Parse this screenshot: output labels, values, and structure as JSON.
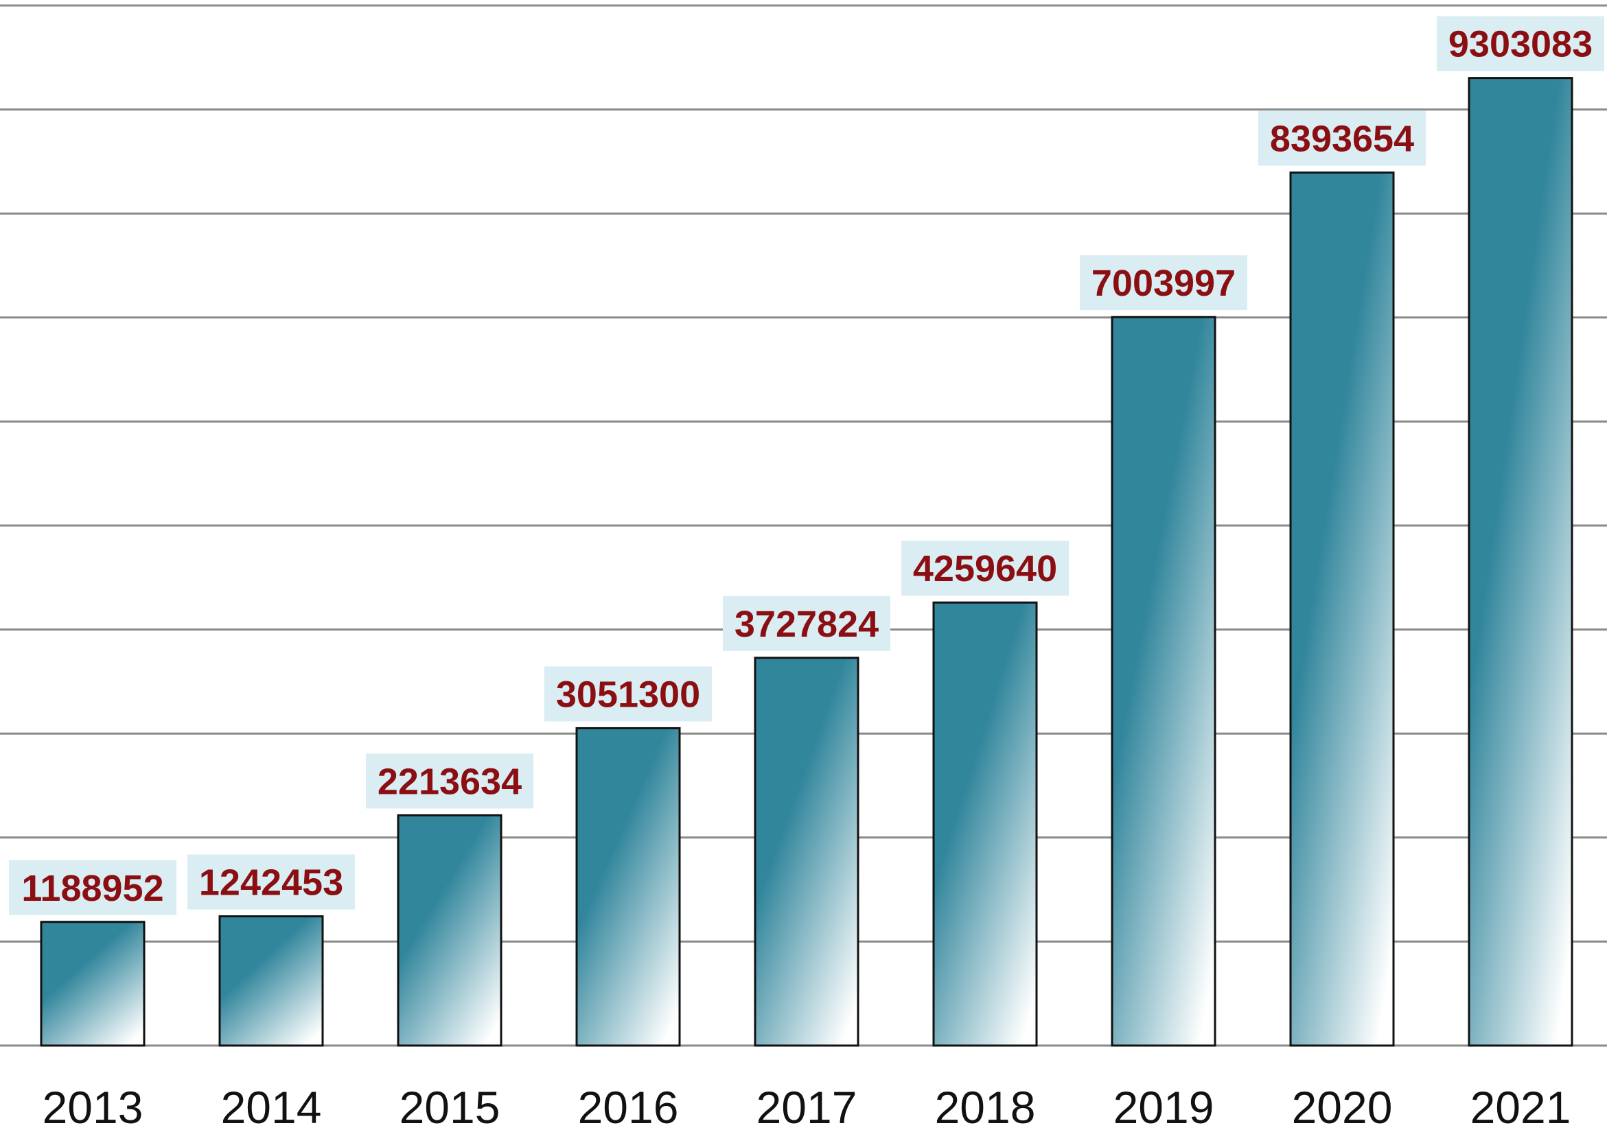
{
  "chart_data": {
    "type": "bar",
    "title": "",
    "xlabel": "",
    "ylabel": "",
    "categories": [
      "2013",
      "2014",
      "2015",
      "2016",
      "2017",
      "2018",
      "2019",
      "2020",
      "2021"
    ],
    "values": [
      1188952,
      1242453,
      2213634,
      3051300,
      3727824,
      4259640,
      7003997,
      8393654,
      9303083
    ],
    "data_labels": [
      "1188952",
      "1242453",
      "2213634",
      "3051300",
      "3727824",
      "4259640",
      "7003997",
      "8393654",
      "9303083"
    ],
    "ylim": [
      0,
      10000000
    ],
    "y_gridlines": [
      0,
      1000000,
      2000000,
      3000000,
      4000000,
      5000000,
      6000000,
      7000000,
      8000000,
      9000000,
      10000000
    ],
    "y_tick_labels_shown": false,
    "grid": true,
    "legend": "none",
    "colors": {
      "bar_top": "#32869c",
      "bar_bottom": "#ffffff",
      "bar_border": "#111111",
      "label_text": "#8b0f12",
      "label_background": "#d9edf3",
      "gridline": "#8a8a8a",
      "axis_text": "#111111"
    }
  }
}
